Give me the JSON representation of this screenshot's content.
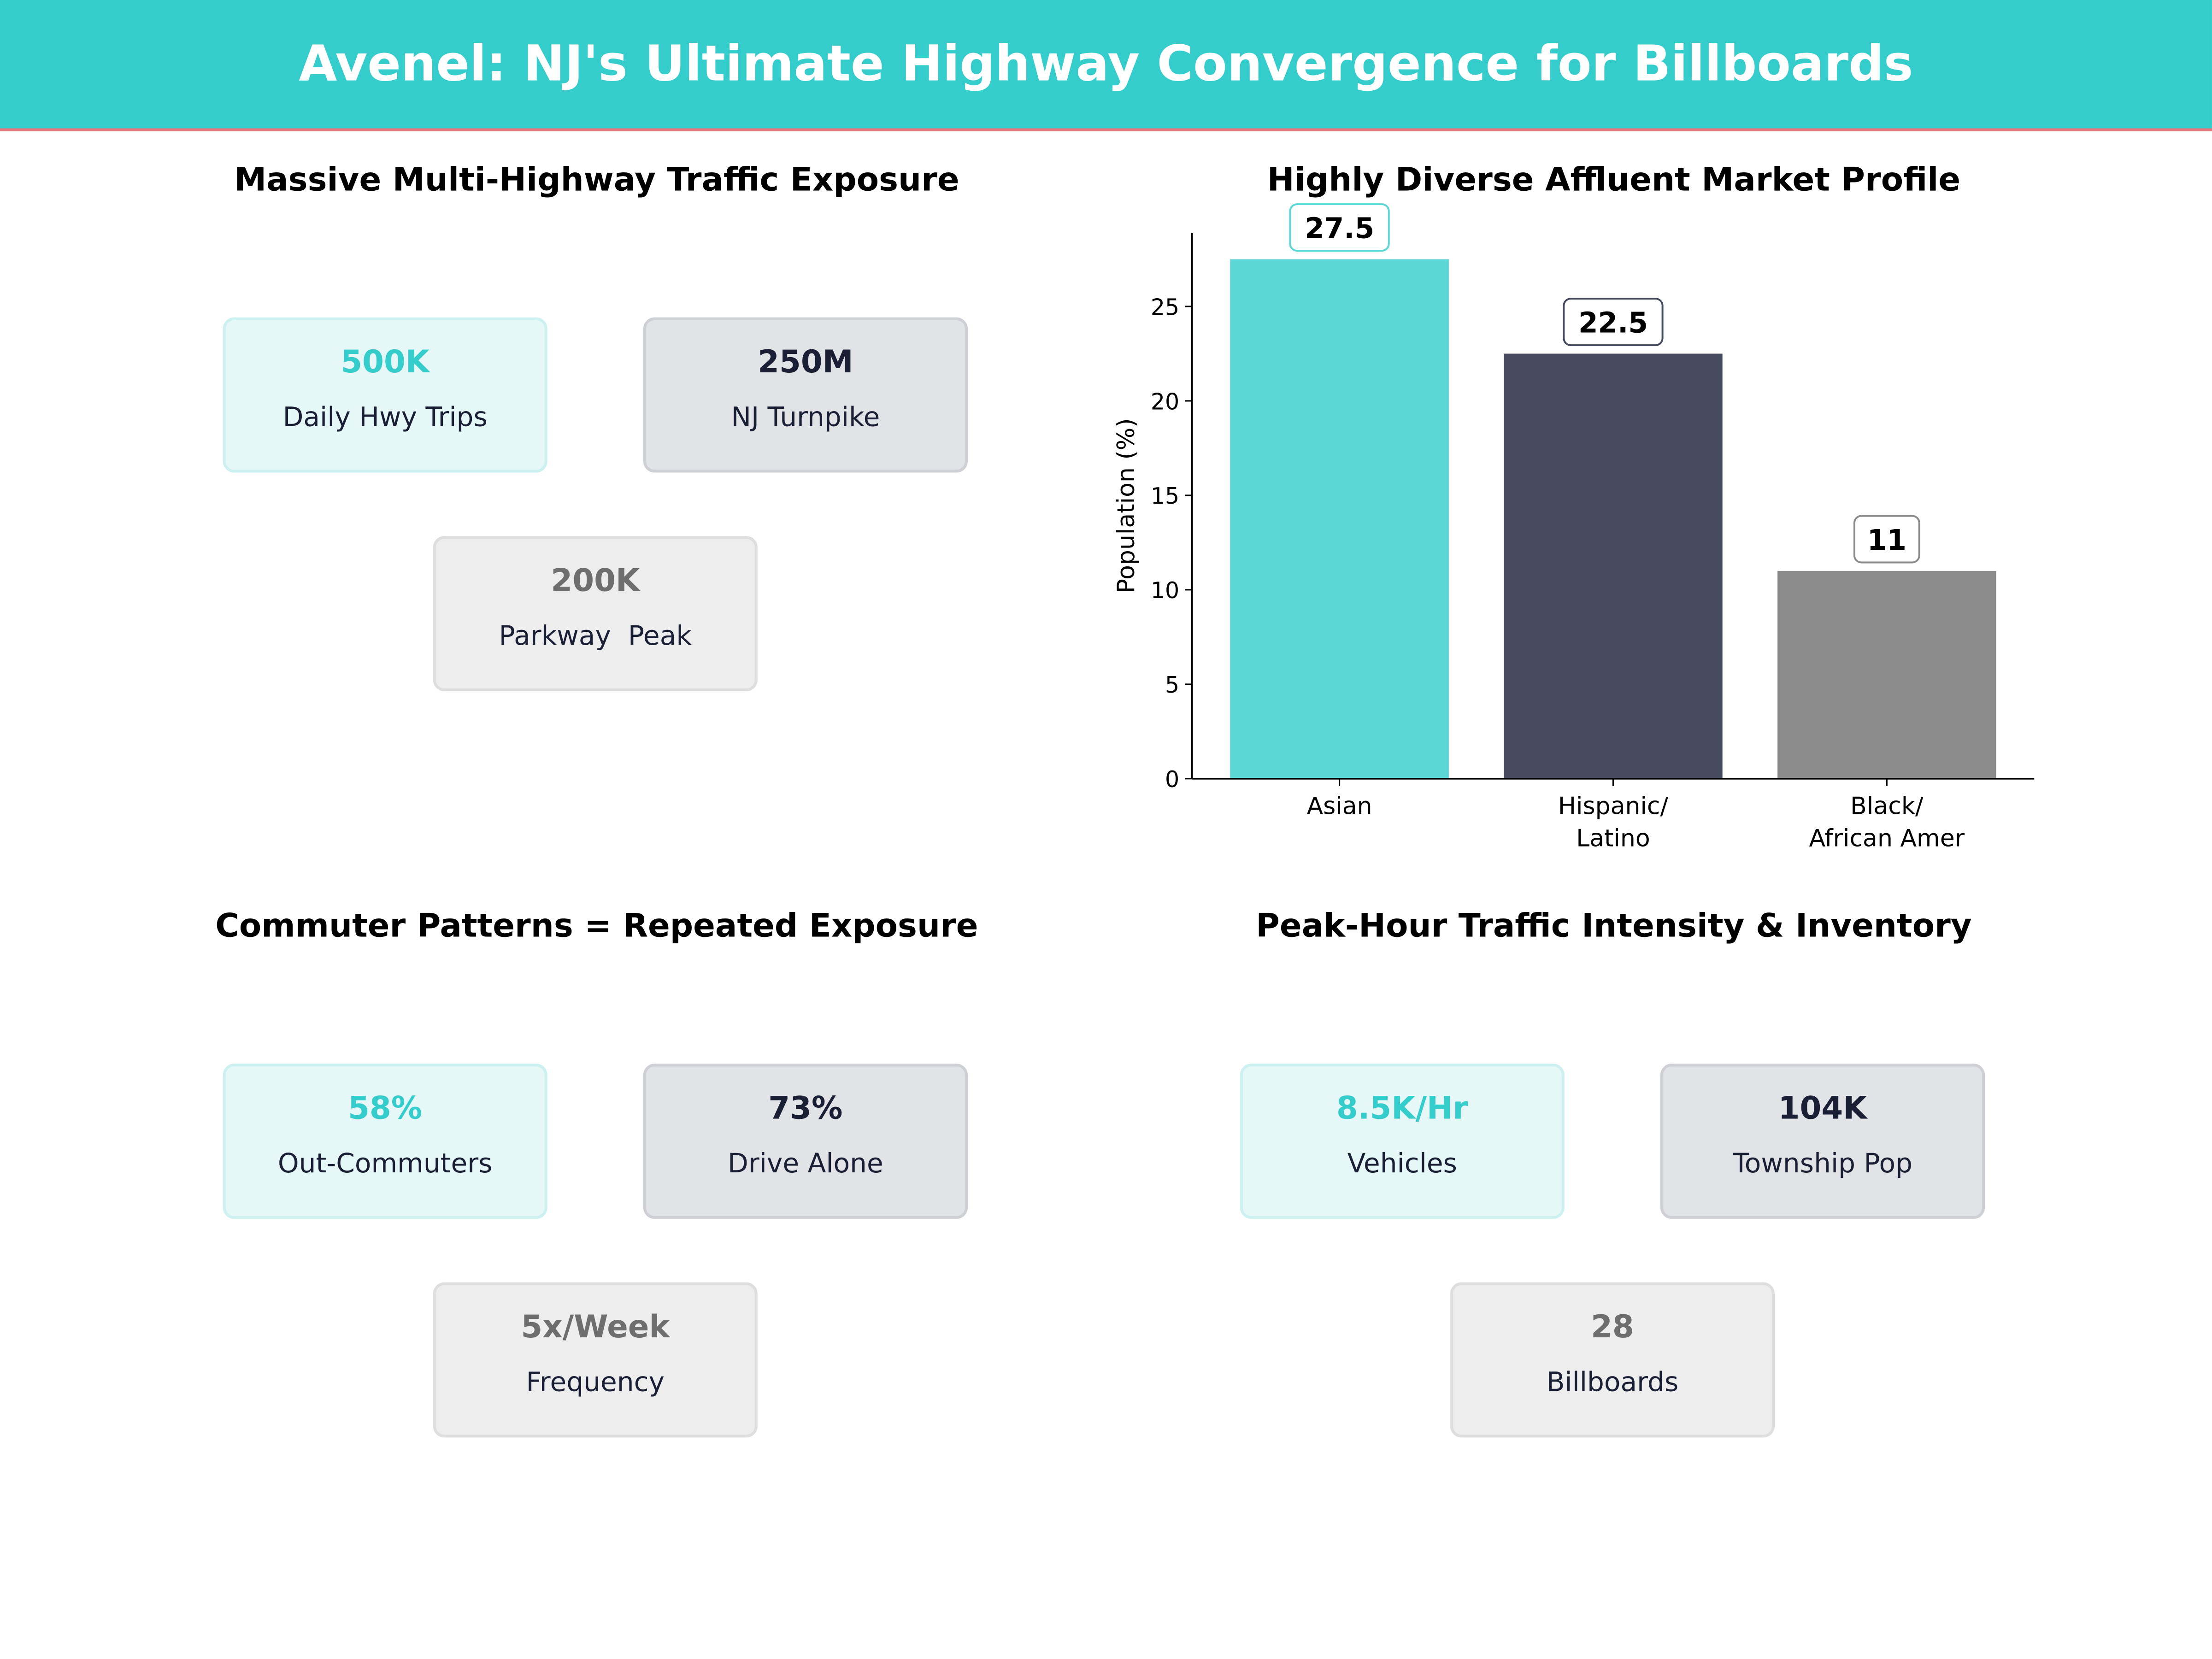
{
  "header": {
    "title": "Avenel: NJ's Ultimate Highway Convergence for Billboards"
  },
  "panels": {
    "traffic": {
      "title": "Massive Multi-Highway Traffic Exposure",
      "cards": [
        {
          "value": "500K",
          "label": "Daily Hwy Trips"
        },
        {
          "value": "250M",
          "label": "NJ Turnpike"
        },
        {
          "value": "200K",
          "label": "Parkway  Peak"
        }
      ]
    },
    "commuter": {
      "title": "Commuter Patterns = Repeated Exposure",
      "cards": [
        {
          "value": "58%",
          "label": "Out-Commuters"
        },
        {
          "value": "73%",
          "label": "Drive Alone"
        },
        {
          "value": "5x/Week",
          "label": "Frequency"
        }
      ]
    },
    "peak": {
      "title": "Peak-Hour Traffic Intensity & Inventory",
      "cards": [
        {
          "value": "8.5K/Hr",
          "label": "Vehicles"
        },
        {
          "value": "104K",
          "label": "Township Pop"
        },
        {
          "value": "28",
          "label": "Billboards"
        }
      ]
    }
  },
  "colors": {
    "accent": "#35cccc",
    "dark": "#454a5f",
    "gray": "#8c8c8c",
    "header_line": "#e8737a"
  },
  "chart_data": {
    "type": "bar",
    "title": "Highly Diverse Affluent Market Profile",
    "categories": [
      "Asian",
      "Hispanic/\nLatino",
      "Black/\nAfrican Amer"
    ],
    "values": [
      27.5,
      22.5,
      11
    ],
    "data_labels": [
      "27.5",
      "22.5",
      "11"
    ],
    "colors": [
      "#5dd7d5",
      "#454a5f",
      "#8c8c8c"
    ],
    "xlabel": "",
    "ylabel": "Population (%)",
    "ylim": [
      0,
      28.9
    ],
    "yticks": [
      0,
      5,
      10,
      15,
      20,
      25
    ],
    "grid": false
  }
}
